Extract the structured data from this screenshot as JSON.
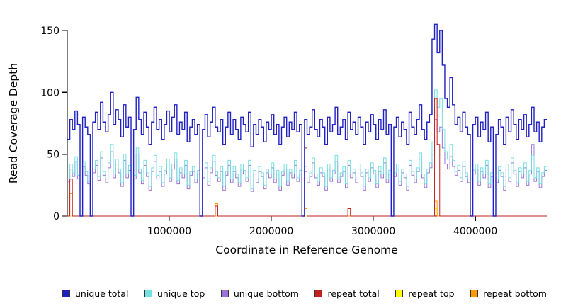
{
  "chart_data": {
    "type": "line",
    "line_style": "step",
    "title": "",
    "xlabel": "Coordinate in Reference Genome",
    "ylabel": "Read Coverage Depth",
    "xlim": [
      0,
      4700000
    ],
    "ylim": [
      0,
      157
    ],
    "bin_size": 25000,
    "n_bins": 188,
    "grid": false,
    "legend_position": "bottom",
    "x_ticks": [
      1000000,
      2000000,
      3000000,
      4000000
    ],
    "x_tick_labels": [
      "1000000",
      "2000000",
      "3000000",
      "4000000"
    ],
    "y_ticks": [
      0,
      50,
      100,
      150
    ],
    "y_tick_labels": [
      "0",
      "50",
      "100",
      "150"
    ],
    "draw_order": [
      4,
      5,
      2,
      1,
      3,
      0
    ],
    "series": [
      {
        "name": "unique total",
        "color": "#1F1FC4",
        "values": [
          62,
          78,
          70,
          85,
          74,
          0,
          80,
          72,
          66,
          0,
          76,
          84,
          70,
          92,
          76,
          68,
          82,
          100,
          74,
          86,
          78,
          64,
          90,
          72,
          80,
          0,
          70,
          96,
          78,
          66,
          84,
          72,
          58,
          76,
          88,
          70,
          78,
          62,
          74,
          85,
          68,
          80,
          90,
          66,
          76,
          70,
          84,
          60,
          72,
          78,
          66,
          74,
          0,
          70,
          82,
          64,
          76,
          88,
          72,
          68,
          78,
          58,
          72,
          84,
          66,
          78,
          70,
          62,
          80,
          74,
          68,
          84,
          56,
          74,
          66,
          78,
          72,
          60,
          76,
          70,
          82,
          66,
          74,
          58,
          72,
          80,
          64,
          76,
          70,
          84,
          68,
          74,
          0,
          78,
          66,
          72,
          86,
          70,
          64,
          78,
          72,
          58,
          80,
          68,
          74,
          88,
          66,
          72,
          78,
          62,
          84,
          70,
          76,
          66,
          80,
          72,
          58,
          76,
          68,
          82,
          74,
          62,
          78,
          70,
          86,
          66,
          74,
          0,
          72,
          80,
          64,
          76,
          70,
          58,
          84,
          72,
          66,
          78,
          90,
          70,
          62,
          76,
          82,
          143,
          155,
          132,
          150,
          122,
          95,
          88,
          112,
          90,
          74,
          80,
          68,
          84,
          72,
          66,
          0,
          74,
          80,
          64,
          76,
          70,
          84,
          60,
          72,
          0,
          66,
          78,
          72,
          58,
          80,
          68,
          86,
          74,
          62,
          78,
          70,
          82,
          64,
          74,
          88,
          68,
          76,
          60,
          72,
          78
        ]
      },
      {
        "name": "unique top",
        "color": "#74E0E0",
        "values": [
          30,
          42,
          35,
          48,
          33,
          0,
          44,
          36,
          28,
          0,
          38,
          45,
          32,
          52,
          36,
          30,
          43,
          58,
          34,
          46,
          38,
          27,
          50,
          34,
          41,
          0,
          33,
          55,
          38,
          29,
          45,
          35,
          24,
          39,
          49,
          33,
          40,
          27,
          37,
          46,
          31,
          42,
          51,
          29,
          39,
          34,
          45,
          25,
          36,
          40,
          30,
          37,
          0,
          34,
          43,
          28,
          39,
          49,
          36,
          31,
          40,
          24,
          36,
          45,
          30,
          40,
          34,
          27,
          42,
          37,
          31,
          45,
          22,
          37,
          30,
          40,
          35,
          25,
          38,
          34,
          43,
          30,
          37,
          24,
          36,
          42,
          28,
          38,
          34,
          45,
          31,
          37,
          0,
          40,
          30,
          35,
          47,
          34,
          28,
          39,
          35,
          24,
          42,
          31,
          37,
          49,
          30,
          35,
          40,
          26,
          45,
          34,
          38,
          30,
          42,
          35,
          24,
          38,
          31,
          43,
          37,
          26,
          40,
          34,
          47,
          30,
          37,
          0,
          35,
          42,
          28,
          38,
          34,
          24,
          45,
          36,
          30,
          39,
          51,
          34,
          26,
          38,
          43,
          60,
          102,
          88,
          95,
          70,
          52,
          46,
          58,
          45,
          36,
          41,
          31,
          44,
          35,
          30,
          0,
          37,
          42,
          28,
          39,
          34,
          45,
          26,
          35,
          0,
          30,
          40,
          35,
          24,
          42,
          31,
          47,
          37,
          27,
          39,
          34,
          43,
          28,
          37,
          49,
          31,
          39,
          26,
          35,
          40
        ]
      },
      {
        "name": "unique bottom",
        "color": "#9973D8",
        "values": [
          28,
          38,
          32,
          44,
          30,
          0,
          40,
          33,
          26,
          0,
          35,
          41,
          29,
          47,
          33,
          27,
          39,
          52,
          31,
          42,
          35,
          24,
          45,
          31,
          37,
          0,
          30,
          50,
          35,
          26,
          41,
          32,
          21,
          36,
          44,
          30,
          36,
          24,
          34,
          42,
          28,
          38,
          46,
          26,
          35,
          31,
          41,
          22,
          33,
          36,
          27,
          34,
          0,
          31,
          39,
          25,
          35,
          44,
          33,
          28,
          36,
          21,
          33,
          41,
          27,
          36,
          31,
          24,
          38,
          34,
          28,
          41,
          20,
          34,
          27,
          36,
          32,
          22,
          35,
          31,
          39,
          27,
          34,
          21,
          33,
          38,
          25,
          35,
          31,
          41,
          28,
          34,
          0,
          36,
          27,
          32,
          43,
          31,
          25,
          35,
          32,
          21,
          38,
          28,
          34,
          44,
          27,
          32,
          36,
          23,
          41,
          31,
          35,
          27,
          38,
          32,
          21,
          35,
          28,
          39,
          34,
          23,
          36,
          31,
          43,
          27,
          34,
          0,
          32,
          38,
          25,
          35,
          31,
          21,
          41,
          33,
          27,
          36,
          46,
          31,
          23,
          35,
          39,
          50,
          78,
          68,
          72,
          55,
          42,
          38,
          48,
          40,
          33,
          37,
          28,
          40,
          32,
          27,
          0,
          34,
          38,
          25,
          36,
          31,
          41,
          23,
          32,
          0,
          27,
          37,
          32,
          21,
          38,
          28,
          43,
          34,
          24,
          36,
          31,
          39,
          25,
          34,
          58,
          28,
          36,
          23,
          32,
          37
        ]
      },
      {
        "name": "repeat total",
        "color": "#C21F1F",
        "values": [
          0,
          30,
          0,
          0,
          0,
          0,
          0,
          0,
          0,
          0,
          0,
          0,
          0,
          0,
          0,
          0,
          0,
          0,
          0,
          0,
          0,
          0,
          0,
          0,
          0,
          0,
          0,
          0,
          0,
          0,
          0,
          0,
          0,
          0,
          0,
          0,
          0,
          0,
          0,
          0,
          0,
          0,
          0,
          0,
          0,
          0,
          0,
          0,
          0,
          0,
          0,
          0,
          0,
          0,
          0,
          0,
          0,
          0,
          8,
          0,
          0,
          0,
          0,
          0,
          0,
          0,
          0,
          0,
          0,
          0,
          0,
          0,
          0,
          0,
          0,
          0,
          0,
          0,
          0,
          0,
          0,
          0,
          0,
          0,
          0,
          0,
          0,
          0,
          0,
          0,
          0,
          0,
          0,
          55,
          0,
          0,
          0,
          0,
          0,
          0,
          0,
          0,
          0,
          0,
          0,
          0,
          0,
          0,
          0,
          0,
          6,
          0,
          0,
          0,
          0,
          0,
          0,
          0,
          0,
          0,
          0,
          0,
          0,
          0,
          0,
          0,
          0,
          0,
          0,
          0,
          0,
          0,
          0,
          0,
          0,
          0,
          0,
          0,
          0,
          0,
          0,
          0,
          0,
          0,
          95,
          58,
          0,
          0,
          0,
          0,
          0,
          0,
          0,
          0,
          0,
          0,
          0,
          0,
          0,
          0,
          0,
          0,
          0,
          0,
          0,
          0,
          0,
          0,
          0,
          0,
          0,
          0,
          0,
          0,
          0,
          0,
          0,
          0,
          0,
          0,
          0,
          0,
          0,
          0,
          0,
          0,
          0,
          0
        ]
      },
      {
        "name": "repeat top",
        "color": "#FFFF00",
        "values": [
          0,
          0,
          0,
          0,
          0,
          0,
          0,
          0,
          0,
          0,
          0,
          0,
          0,
          0,
          0,
          0,
          0,
          0,
          0,
          0,
          0,
          0,
          0,
          0,
          0,
          0,
          0,
          0,
          0,
          0,
          0,
          0,
          0,
          0,
          0,
          0,
          0,
          0,
          0,
          0,
          0,
          0,
          0,
          0,
          0,
          0,
          0,
          0,
          0,
          0,
          0,
          0,
          0,
          0,
          0,
          0,
          0,
          0,
          0,
          0,
          0,
          0,
          0,
          0,
          0,
          0,
          0,
          0,
          0,
          0,
          0,
          0,
          0,
          0,
          0,
          0,
          0,
          0,
          0,
          0,
          0,
          0,
          0,
          0,
          0,
          0,
          0,
          0,
          0,
          0,
          0,
          0,
          0,
          0,
          0,
          0,
          0,
          0,
          0,
          0,
          0,
          0,
          0,
          0,
          0,
          0,
          0,
          0,
          0,
          0,
          0,
          0,
          0,
          0,
          0,
          0,
          0,
          0,
          0,
          0,
          0,
          0,
          0,
          0,
          0,
          0,
          0,
          0,
          0,
          0,
          0,
          0,
          0,
          0,
          0,
          0,
          0,
          0,
          0,
          0,
          0,
          0,
          0,
          0,
          6,
          0,
          0,
          0,
          0,
          0,
          0,
          0,
          0,
          0,
          0,
          0,
          0,
          0,
          0,
          0,
          0,
          0,
          0,
          0,
          0,
          0,
          0,
          0,
          0,
          0,
          0,
          0,
          0,
          0,
          0,
          0,
          0,
          0,
          0,
          0,
          0,
          0,
          0,
          0,
          0,
          0,
          0,
          0
        ]
      },
      {
        "name": "repeat bottom",
        "color": "#FF9900",
        "values": [
          0,
          18,
          0,
          0,
          0,
          0,
          0,
          0,
          0,
          0,
          0,
          0,
          0,
          0,
          0,
          0,
          0,
          0,
          0,
          0,
          0,
          0,
          0,
          0,
          0,
          0,
          0,
          0,
          0,
          0,
          0,
          0,
          0,
          0,
          0,
          0,
          0,
          0,
          0,
          0,
          0,
          0,
          0,
          0,
          0,
          0,
          0,
          0,
          0,
          0,
          0,
          0,
          0,
          0,
          0,
          0,
          0,
          0,
          10,
          0,
          0,
          0,
          0,
          0,
          0,
          0,
          0,
          0,
          0,
          0,
          0,
          0,
          0,
          0,
          0,
          0,
          0,
          0,
          0,
          0,
          0,
          0,
          0,
          0,
          0,
          0,
          0,
          0,
          0,
          0,
          0,
          0,
          0,
          6,
          0,
          0,
          0,
          0,
          0,
          0,
          0,
          0,
          0,
          0,
          0,
          0,
          0,
          0,
          0,
          0,
          0,
          0,
          0,
          0,
          0,
          0,
          0,
          0,
          0,
          0,
          0,
          0,
          0,
          0,
          0,
          0,
          0,
          0,
          0,
          0,
          0,
          0,
          0,
          0,
          0,
          0,
          0,
          0,
          0,
          0,
          0,
          0,
          0,
          0,
          12,
          0,
          0,
          0,
          0,
          0,
          0,
          0,
          0,
          0,
          0,
          0,
          0,
          0,
          0,
          0,
          0,
          0,
          0,
          0,
          0,
          0,
          0,
          0,
          0,
          0,
          0,
          0,
          0,
          0,
          0,
          0,
          0,
          0,
          0,
          0,
          0,
          0,
          0,
          0,
          0,
          0,
          0,
          0
        ]
      }
    ]
  }
}
